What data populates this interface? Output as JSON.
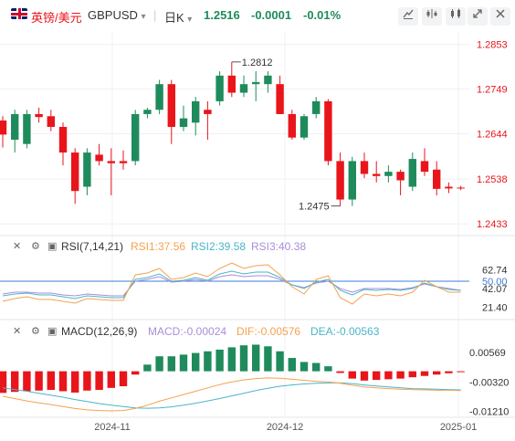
{
  "header": {
    "pair_name": "英镑/美元",
    "symbol": "GBPUSD",
    "symbol_chevron": "▾",
    "timeframe": "日K",
    "timeframe_chevron": "▾",
    "last_price": "1.2516",
    "change": "-0.0001",
    "change_pct": "-0.01%",
    "flag_icon": "uk-flag-icon",
    "tools": [
      "draw-line-icon",
      "indicator-icon",
      "settings-icon",
      "expand-icon",
      "close-icon"
    ],
    "colors": {
      "up": "#1f8b5c",
      "down": "#e8151b"
    }
  },
  "indicators": {
    "rsi": {
      "name": "RSI(7,14,21)",
      "rsi1": "RSI1:37.56",
      "rsi2": "RSI2:39.58",
      "rsi3": "RSI3:40.38",
      "colors": {
        "rsi1": "#f5a14f",
        "rsi2": "#4bb5c8",
        "rsi3": "#a98ed8"
      },
      "axis_ticks": [
        "62.74",
        "50.00",
        "42.07",
        "21.40"
      ]
    },
    "macd": {
      "name": "MACD(12,26,9)",
      "macd": "MACD:-0.00024",
      "dif": "DIF:-0.00576",
      "dea": "DEA:-0.00563",
      "colors": {
        "macd": "#a98ed8",
        "dif": "#f5a14f",
        "dea": "#4bb5c8"
      },
      "axis_ticks": [
        "0.00569",
        "-0.00320",
        "-0.01210"
      ]
    }
  },
  "chart_data": {
    "type": "candlestick",
    "price_axis_ticks": [
      1.2853,
      1.2749,
      1.2644,
      1.2538,
      1.2433
    ],
    "price_range": [
      1.241,
      1.288
    ],
    "annotations": {
      "high": "1.2812",
      "low": "1.2475"
    },
    "x_axis_labels": [
      "2024-11",
      "2024-12",
      "2025-01"
    ],
    "candles": [
      {
        "o": 1.2675,
        "c": 1.2642,
        "h": 1.2685,
        "l": 1.2612
      },
      {
        "o": 1.263,
        "c": 1.269,
        "h": 1.27,
        "l": 1.26
      },
      {
        "o": 1.262,
        "c": 1.269,
        "h": 1.27,
        "l": 1.261
      },
      {
        "o": 1.269,
        "c": 1.2683,
        "h": 1.2705,
        "l": 1.267
      },
      {
        "o": 1.2685,
        "c": 1.266,
        "h": 1.27,
        "l": 1.265
      },
      {
        "o": 1.266,
        "c": 1.26,
        "h": 1.267,
        "l": 1.257
      },
      {
        "o": 1.26,
        "c": 1.251,
        "h": 1.261,
        "l": 1.248
      },
      {
        "o": 1.252,
        "c": 1.26,
        "h": 1.261,
        "l": 1.25
      },
      {
        "o": 1.2595,
        "c": 1.258,
        "h": 1.262,
        "l": 1.257
      },
      {
        "o": 1.258,
        "c": 1.2575,
        "h": 1.261,
        "l": 1.25
      },
      {
        "o": 1.258,
        "c": 1.2575,
        "h": 1.2605,
        "l": 1.256
      },
      {
        "o": 1.258,
        "c": 1.269,
        "h": 1.27,
        "l": 1.257
      },
      {
        "o": 1.269,
        "c": 1.27,
        "h": 1.2705,
        "l": 1.268
      },
      {
        "o": 1.27,
        "c": 1.276,
        "h": 1.277,
        "l": 1.269
      },
      {
        "o": 1.276,
        "c": 1.266,
        "h": 1.277,
        "l": 1.262
      },
      {
        "o": 1.266,
        "c": 1.268,
        "h": 1.271,
        "l": 1.265
      },
      {
        "o": 1.267,
        "c": 1.272,
        "h": 1.273,
        "l": 1.264
      },
      {
        "o": 1.27,
        "c": 1.269,
        "h": 1.272,
        "l": 1.263
      },
      {
        "o": 1.272,
        "c": 1.278,
        "h": 1.279,
        "l": 1.271
      },
      {
        "o": 1.278,
        "c": 1.274,
        "h": 1.2812,
        "l": 1.273
      },
      {
        "o": 1.274,
        "c": 1.276,
        "h": 1.278,
        "l": 1.273
      },
      {
        "o": 1.276,
        "c": 1.2765,
        "h": 1.279,
        "l": 1.272
      },
      {
        "o": 1.276,
        "c": 1.278,
        "h": 1.279,
        "l": 1.274
      },
      {
        "o": 1.276,
        "c": 1.269,
        "h": 1.278,
        "l": 1.269
      },
      {
        "o": 1.269,
        "c": 1.2635,
        "h": 1.27,
        "l": 1.263
      },
      {
        "o": 1.2635,
        "c": 1.2685,
        "h": 1.269,
        "l": 1.263
      },
      {
        "o": 1.269,
        "c": 1.272,
        "h": 1.273,
        "l": 1.268
      },
      {
        "o": 1.272,
        "c": 1.258,
        "h": 1.2725,
        "l": 1.257
      },
      {
        "o": 1.258,
        "c": 1.249,
        "h": 1.26,
        "l": 1.2475
      },
      {
        "o": 1.249,
        "c": 1.258,
        "h": 1.259,
        "l": 1.2475
      },
      {
        "o": 1.258,
        "c": 1.255,
        "h": 1.26,
        "l": 1.254
      },
      {
        "o": 1.255,
        "c": 1.2545,
        "h": 1.258,
        "l": 1.253
      },
      {
        "o": 1.2545,
        "c": 1.2555,
        "h": 1.257,
        "l": 1.253
      },
      {
        "o": 1.2555,
        "c": 1.2535,
        "h": 1.256,
        "l": 1.25
      },
      {
        "o": 1.252,
        "c": 1.2585,
        "h": 1.26,
        "l": 1.251
      },
      {
        "o": 1.258,
        "c": 1.2555,
        "h": 1.261,
        "l": 1.2545
      },
      {
        "o": 1.256,
        "c": 1.2515,
        "h": 1.258,
        "l": 1.25
      },
      {
        "o": 1.252,
        "c": 1.2516,
        "h": 1.253,
        "l": 1.2505
      },
      {
        "o": 1.2518,
        "c": 1.2516,
        "h": 1.2522,
        "l": 1.2512
      }
    ],
    "rsi_range": [
      10,
      78
    ],
    "rsi_reference": 50.0,
    "rsi1": [
      28,
      31,
      33,
      30,
      30,
      28,
      26,
      31,
      30,
      29,
      29,
      57,
      59,
      64,
      52,
      54,
      59,
      55,
      64,
      70,
      64,
      67,
      68,
      57,
      44,
      36,
      52,
      56,
      32,
      25,
      36,
      34,
      36,
      34,
      38,
      51,
      44,
      38,
      38
    ],
    "rsi2": [
      34,
      36,
      37,
      35,
      35,
      33,
      31,
      34,
      33,
      32,
      32,
      52,
      54,
      58,
      50,
      51,
      54,
      51,
      58,
      61,
      58,
      60,
      60,
      54,
      46,
      42,
      49,
      52,
      40,
      35,
      41,
      40,
      41,
      40,
      42,
      48,
      44,
      41,
      40
    ],
    "rsi3": [
      36,
      38,
      38,
      37,
      37,
      35,
      34,
      36,
      35,
      34,
      34,
      50,
      52,
      55,
      49,
      50,
      52,
      50,
      55,
      57,
      55,
      56,
      56,
      52,
      46,
      43,
      48,
      50,
      42,
      38,
      42,
      42,
      42,
      41,
      43,
      47,
      44,
      42,
      40
    ],
    "macd_range": [
      -0.013,
      0.0095
    ],
    "macd_hist": [
      -0.0065,
      -0.0062,
      -0.006,
      -0.0058,
      -0.0056,
      -0.006,
      -0.0064,
      -0.0058,
      -0.0056,
      -0.005,
      -0.0045,
      -0.001,
      0.002,
      0.0045,
      0.0045,
      0.005,
      0.0055,
      0.006,
      0.0065,
      0.0072,
      0.0078,
      0.008,
      0.0075,
      0.006,
      0.004,
      0.0028,
      0.0025,
      0.0015,
      -0.0005,
      -0.0022,
      -0.0028,
      -0.0026,
      -0.0024,
      -0.0022,
      -0.0018,
      -0.0014,
      -0.001,
      -0.0006,
      -0.0002
    ],
    "dif": [
      -0.0075,
      -0.0082,
      -0.0089,
      -0.0095,
      -0.01,
      -0.0106,
      -0.0112,
      -0.0116,
      -0.0118,
      -0.0119,
      -0.0118,
      -0.0112,
      -0.0102,
      -0.009,
      -0.008,
      -0.007,
      -0.006,
      -0.005,
      -0.004,
      -0.0032,
      -0.0026,
      -0.0022,
      -0.002,
      -0.0021,
      -0.0024,
      -0.0027,
      -0.003,
      -0.0032,
      -0.0036,
      -0.0042,
      -0.0047,
      -0.005,
      -0.0052,
      -0.0054,
      -0.0055,
      -0.0056,
      -0.0057,
      -0.0057,
      -0.0058
    ],
    "dea": [
      -0.005,
      -0.0055,
      -0.006,
      -0.0066,
      -0.0072,
      -0.0078,
      -0.0085,
      -0.0091,
      -0.0097,
      -0.0102,
      -0.0106,
      -0.011,
      -0.0111,
      -0.011,
      -0.0107,
      -0.0102,
      -0.0096,
      -0.0089,
      -0.0082,
      -0.0074,
      -0.0066,
      -0.0058,
      -0.0051,
      -0.0045,
      -0.0041,
      -0.0038,
      -0.0036,
      -0.0035,
      -0.0035,
      -0.0037,
      -0.0041,
      -0.0044,
      -0.0047,
      -0.005,
      -0.0052,
      -0.0053,
      -0.0054,
      -0.0055,
      -0.0056
    ]
  }
}
